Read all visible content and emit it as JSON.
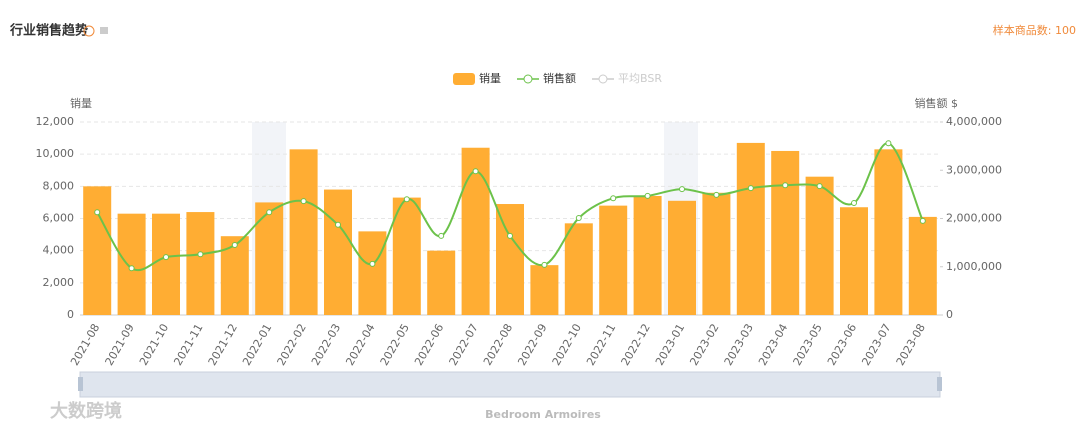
{
  "chart_data": {
    "type": "bar-line",
    "title": "行业销售趋势",
    "sample_note": "样本商品数: 100",
    "y_label": "销量",
    "y2_label": "销售额 $",
    "zoom_label": "Bedroom Armoires",
    "watermark": "大数跨境",
    "categories": [
      "2021-08",
      "2021-09",
      "2021-10",
      "2021-11",
      "2021-12",
      "2022-01",
      "2022-02",
      "2022-03",
      "2022-04",
      "2022-05",
      "2022-06",
      "2022-07",
      "2022-08",
      "2022-09",
      "2022-10",
      "2022-11",
      "2022-12",
      "2023-01",
      "2023-02",
      "2023-03",
      "2023-04",
      "2023-05",
      "2023-06",
      "2023-07",
      "2023-08"
    ],
    "series": [
      {
        "name": "销量",
        "color": "#ffad33",
        "kind": "bar",
        "values": [
          8000,
          6300,
          6300,
          6400,
          4900,
          7000,
          10300,
          7800,
          5200,
          7300,
          4000,
          10400,
          6900,
          3100,
          5700,
          6800,
          7400,
          7100,
          7600,
          10700,
          10200,
          8600,
          6700,
          10300,
          6100
        ]
      },
      {
        "name": "销售额",
        "color": "#6cc24a",
        "kind": "line",
        "axis": "y2",
        "values": [
          2130000,
          970000,
          1200000,
          1260000,
          1450000,
          2130000,
          2360000,
          1870000,
          1060000,
          2400000,
          1640000,
          2980000,
          1640000,
          1040000,
          2010000,
          2420000,
          2470000,
          2610000,
          2490000,
          2630000,
          2690000,
          2670000,
          2320000,
          3560000,
          1950000
        ]
      },
      {
        "name": "平均BSR",
        "color": "#cccccc",
        "kind": "line",
        "hidden": true
      }
    ],
    "ylim": [
      0,
      12000
    ],
    "yticks": [
      0,
      {
        "value": 2000,
        "label": "2,000"
      },
      {
        "value": 4000,
        "label": "4,000"
      },
      {
        "value": 6000,
        "label": "6,000"
      },
      {
        "value": 8000,
        "label": "8,000"
      },
      {
        "value": 10000,
        "label": "10,000"
      },
      {
        "value": 12000,
        "label": "12,000"
      }
    ],
    "y2lim": [
      0,
      4000000
    ],
    "y2ticks": [
      0,
      {
        "value": 1000000,
        "label": "1,000,000"
      },
      {
        "value": 2000000,
        "label": "2,000,000"
      },
      {
        "value": 3000000,
        "label": "3,000,000"
      },
      {
        "value": 4000000,
        "label": "4,000,000"
      }
    ],
    "grid": true
  }
}
